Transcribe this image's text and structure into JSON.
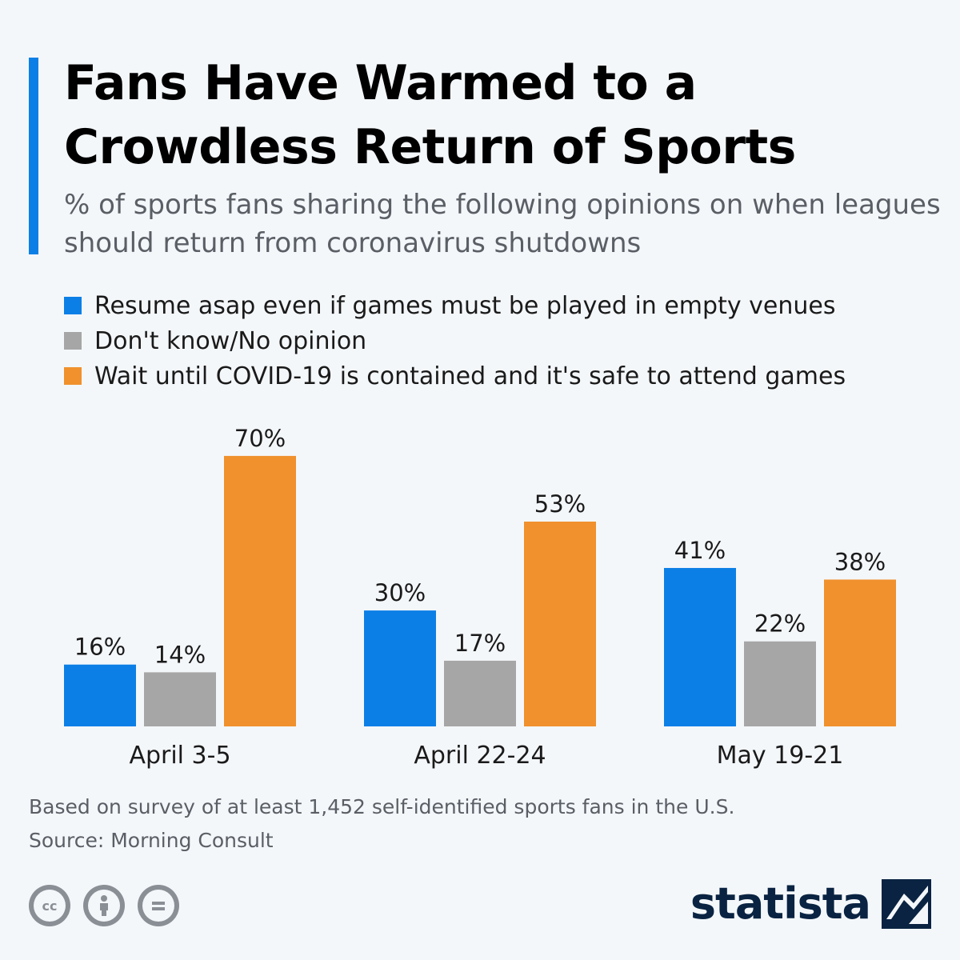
{
  "title_lines": [
    "Fans Have Warmed to a",
    "Crowdless Return of Sports"
  ],
  "subtitle": "% of sports fans sharing the following opinions on when leagues should return from coronavirus shutdowns",
  "colors": {
    "accent": "#0b7fe6",
    "resume": "#0b7fe6",
    "dont_know": "#a6a6a6",
    "wait": "#f0912d"
  },
  "chart_data": {
    "type": "bar",
    "categories": [
      "April 3-5",
      "April 22-24",
      "May 19-21"
    ],
    "series": [
      {
        "name": "Resume asap even if games must be played in empty venues",
        "values": [
          16,
          30,
          41
        ],
        "labels": [
          "16%",
          "30%",
          "41%"
        ],
        "color": "#0b7fe6"
      },
      {
        "name": "Don't know/No opinion",
        "values": [
          14,
          17,
          22
        ],
        "labels": [
          "14%",
          "17%",
          "22%"
        ],
        "color": "#a6a6a6"
      },
      {
        "name": "Wait until COVID-19 is contained and it's safe to attend games",
        "values": [
          70,
          53,
          38
        ],
        "labels": [
          "70%",
          "53%",
          "38%"
        ],
        "color": "#f0912d"
      }
    ],
    "unit": "%",
    "legend_position": "top-left",
    "grid": false
  },
  "footnote": {
    "note": "Based on survey of at least 1,452 self-identified sports fans in the U.S.",
    "source": "Source: Morning Consult"
  },
  "license_icons": [
    "cc-icon",
    "attribution-icon",
    "no-derivatives-icon"
  ],
  "brand": "statista"
}
